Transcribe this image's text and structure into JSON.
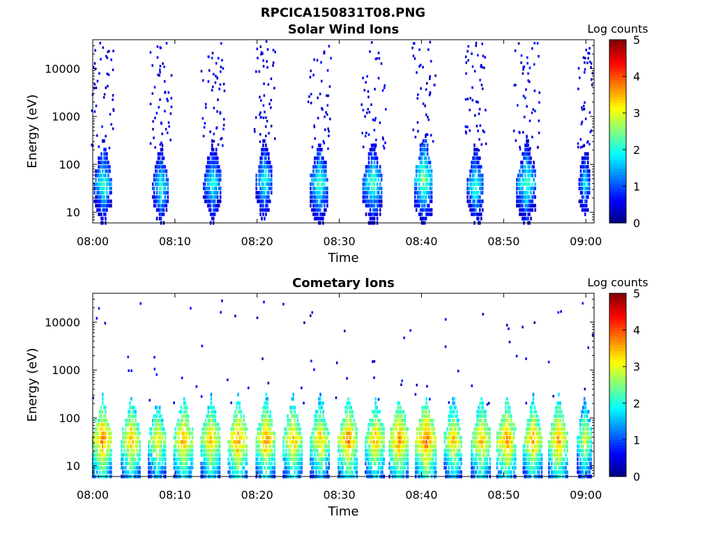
{
  "figure": {
    "main_title": "RPCICA150831T08.PNG"
  },
  "chart_data": [
    {
      "type": "heatmap",
      "title": "Solar Wind Ions",
      "xlabel": "Time",
      "ylabel": "Energy (eV)",
      "x_ticks": [
        "08:00",
        "08:10",
        "08:20",
        "08:30",
        "08:40",
        "08:50",
        "09:00"
      ],
      "xlim_minutes": [
        0,
        61
      ],
      "y_ticks": [
        {
          "value": 10,
          "label": "10"
        },
        {
          "value": 100,
          "label": "100"
        },
        {
          "value": 1000,
          "label": "1000"
        },
        {
          "value": 10000,
          "label": "10000"
        }
      ],
      "ylim": [
        6,
        40000
      ],
      "yscale": "log",
      "colorbar": {
        "label": "Log counts",
        "range": [
          0,
          5
        ],
        "ticks": [
          "0",
          "1",
          "2",
          "3",
          "4",
          "5"
        ],
        "colormap": "jet"
      },
      "bursts": [
        {
          "center_min": 1.2,
          "width_min": 2.2,
          "peak_energy_ev": 40,
          "peak_log_counts": 2.3
        },
        {
          "center_min": 8.2,
          "width_min": 2.0,
          "peak_energy_ev": 35,
          "peak_log_counts": 2.2
        },
        {
          "center_min": 14.5,
          "width_min": 2.2,
          "peak_energy_ev": 40,
          "peak_log_counts": 2.2
        },
        {
          "center_min": 20.8,
          "width_min": 2.0,
          "peak_energy_ev": 45,
          "peak_log_counts": 2.2
        },
        {
          "center_min": 27.5,
          "width_min": 2.2,
          "peak_energy_ev": 40,
          "peak_log_counts": 2.4
        },
        {
          "center_min": 34.0,
          "width_min": 2.4,
          "peak_energy_ev": 40,
          "peak_log_counts": 2.4
        },
        {
          "center_min": 40.2,
          "width_min": 2.2,
          "peak_energy_ev": 50,
          "peak_log_counts": 2.7
        },
        {
          "center_min": 46.5,
          "width_min": 2.0,
          "peak_energy_ev": 35,
          "peak_log_counts": 2.3
        },
        {
          "center_min": 52.7,
          "width_min": 2.4,
          "peak_energy_ev": 40,
          "peak_log_counts": 2.4
        },
        {
          "center_min": 59.8,
          "width_min": 1.4,
          "peak_energy_ev": 40,
          "peak_log_counts": 2.0
        }
      ]
    },
    {
      "type": "heatmap",
      "title": "Cometary Ions",
      "xlabel": "Time",
      "ylabel": "Energy (eV)",
      "x_ticks": [
        "08:00",
        "08:10",
        "08:20",
        "08:30",
        "08:40",
        "08:50",
        "09:00"
      ],
      "xlim_minutes": [
        0,
        61
      ],
      "y_ticks": [
        {
          "value": 10,
          "label": "10"
        },
        {
          "value": 100,
          "label": "100"
        },
        {
          "value": 1000,
          "label": "1000"
        },
        {
          "value": 10000,
          "label": "10000"
        }
      ],
      "ylim": [
        6,
        40000
      ],
      "yscale": "log",
      "colorbar": {
        "label": "Log counts",
        "range": [
          0,
          5
        ],
        "ticks": [
          "0",
          "1",
          "2",
          "3",
          "4",
          "5"
        ],
        "colormap": "jet"
      },
      "bursts": [
        {
          "center_min": 1.1,
          "width_min": 2.4,
          "peak_energy_ev": 35,
          "peak_log_counts": 3.8
        },
        {
          "center_min": 4.6,
          "width_min": 2.4,
          "peak_energy_ev": 35,
          "peak_log_counts": 3.6
        },
        {
          "center_min": 7.8,
          "width_min": 2.2,
          "peak_energy_ev": 35,
          "peak_log_counts": 3.4
        },
        {
          "center_min": 11.0,
          "width_min": 2.4,
          "peak_energy_ev": 35,
          "peak_log_counts": 3.7
        },
        {
          "center_min": 14.3,
          "width_min": 2.4,
          "peak_energy_ev": 35,
          "peak_log_counts": 3.6
        },
        {
          "center_min": 17.6,
          "width_min": 2.4,
          "peak_energy_ev": 35,
          "peak_log_counts": 3.8
        },
        {
          "center_min": 21.0,
          "width_min": 2.4,
          "peak_energy_ev": 35,
          "peak_log_counts": 3.7
        },
        {
          "center_min": 24.3,
          "width_min": 2.4,
          "peak_energy_ev": 35,
          "peak_log_counts": 3.6
        },
        {
          "center_min": 27.6,
          "width_min": 2.4,
          "peak_energy_ev": 35,
          "peak_log_counts": 3.5
        },
        {
          "center_min": 31.0,
          "width_min": 2.4,
          "peak_energy_ev": 35,
          "peak_log_counts": 3.8
        },
        {
          "center_min": 34.3,
          "width_min": 2.4,
          "peak_energy_ev": 35,
          "peak_log_counts": 3.6
        },
        {
          "center_min": 37.2,
          "width_min": 2.4,
          "peak_energy_ev": 35,
          "peak_log_counts": 3.8
        },
        {
          "center_min": 40.5,
          "width_min": 2.6,
          "peak_energy_ev": 35,
          "peak_log_counts": 3.9
        },
        {
          "center_min": 43.8,
          "width_min": 2.2,
          "peak_energy_ev": 35,
          "peak_log_counts": 3.5
        },
        {
          "center_min": 47.2,
          "width_min": 2.4,
          "peak_energy_ev": 35,
          "peak_log_counts": 3.6
        },
        {
          "center_min": 50.3,
          "width_min": 2.4,
          "peak_energy_ev": 35,
          "peak_log_counts": 3.8
        },
        {
          "center_min": 53.5,
          "width_min": 2.4,
          "peak_energy_ev": 35,
          "peak_log_counts": 3.6
        },
        {
          "center_min": 56.6,
          "width_min": 2.4,
          "peak_energy_ev": 35,
          "peak_log_counts": 3.7
        },
        {
          "center_min": 59.8,
          "width_min": 1.8,
          "peak_energy_ev": 35,
          "peak_log_counts": 3.2
        }
      ]
    }
  ]
}
